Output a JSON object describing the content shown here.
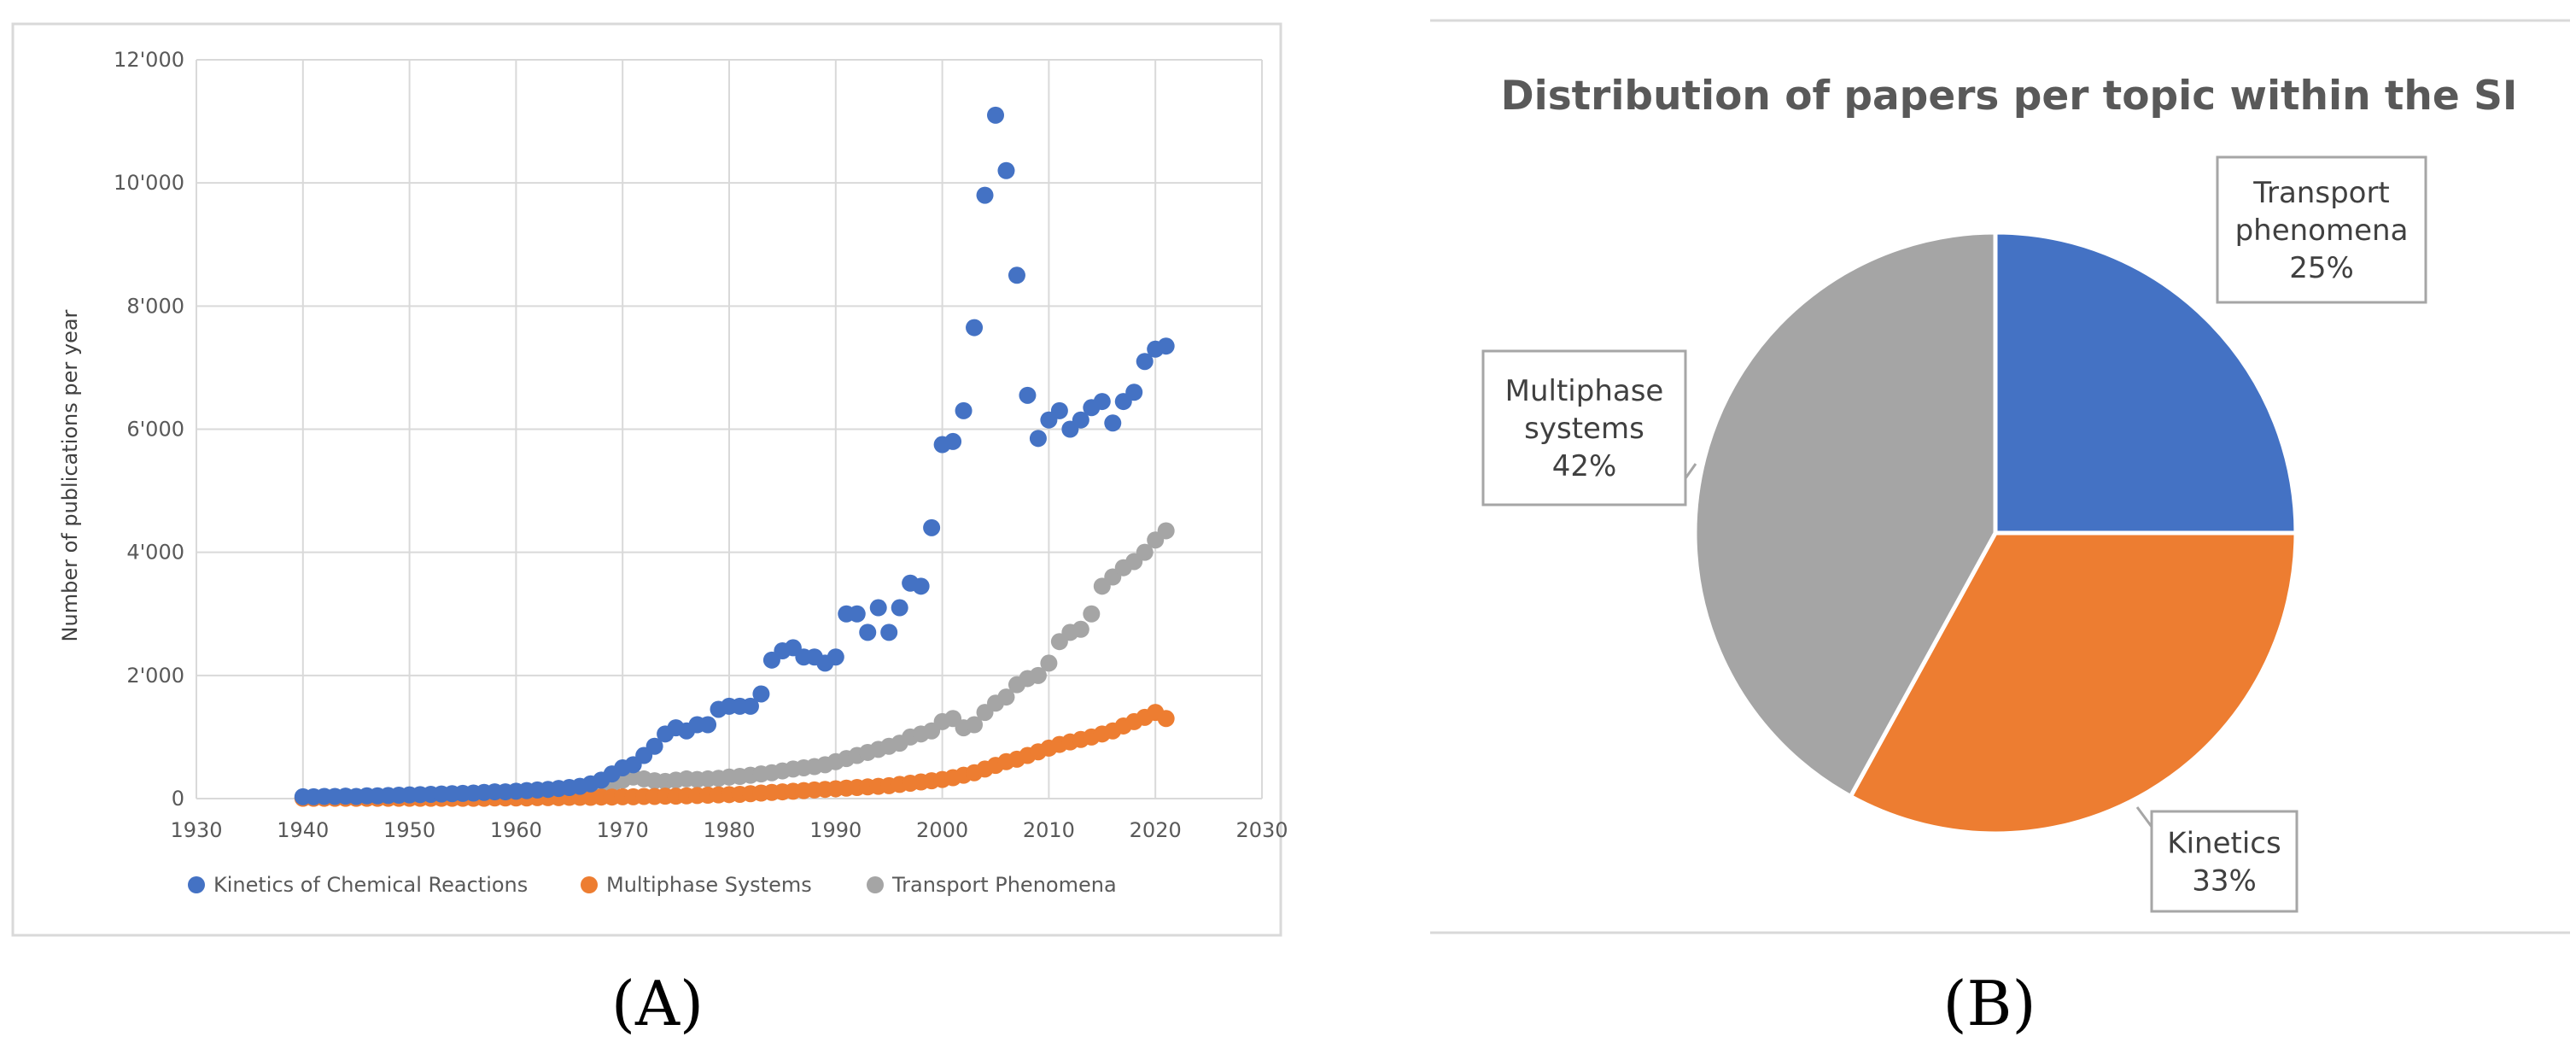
{
  "panel_labels": {
    "a": "(A)",
    "b": "(B)"
  },
  "chart_data": [
    {
      "type": "scatter",
      "title": "",
      "xlabel": "",
      "ylabel": "Number of publications per year",
      "xlim": [
        1930,
        2030
      ],
      "ylim": [
        0,
        12000
      ],
      "x_ticks": [
        1930,
        1940,
        1950,
        1960,
        1970,
        1980,
        1990,
        2000,
        2010,
        2020,
        2030
      ],
      "x_tick_labels": [
        "1930",
        "1940",
        "1950",
        "1960",
        "1970",
        "1980",
        "1990",
        "2000",
        "2010",
        "2020",
        "2030"
      ],
      "y_ticks": [
        0,
        2000,
        4000,
        6000,
        8000,
        10000,
        12000
      ],
      "y_tick_labels": [
        "0",
        "2'000",
        "4'000",
        "6'000",
        "8'000",
        "10'000",
        "12'000"
      ],
      "grid": true,
      "legend_position": "bottom",
      "series": [
        {
          "name": "Kinetics of Chemical Reactions",
          "color": "#4472c4",
          "x": [
            1940,
            1941,
            1942,
            1943,
            1944,
            1945,
            1946,
            1947,
            1948,
            1949,
            1950,
            1951,
            1952,
            1953,
            1954,
            1955,
            1956,
            1957,
            1958,
            1959,
            1960,
            1961,
            1962,
            1963,
            1964,
            1965,
            1966,
            1967,
            1968,
            1969,
            1970,
            1971,
            1972,
            1973,
            1974,
            1975,
            1976,
            1977,
            1978,
            1979,
            1980,
            1981,
            1982,
            1983,
            1984,
            1985,
            1986,
            1987,
            1988,
            1989,
            1990,
            1991,
            1992,
            1993,
            1994,
            1995,
            1996,
            1997,
            1998,
            1999,
            2000,
            2001,
            2002,
            2003,
            2004,
            2005,
            2006,
            2007,
            2008,
            2009,
            2010,
            2011,
            2012,
            2013,
            2014,
            2015,
            2016,
            2017,
            2018,
            2019,
            2020,
            2021
          ],
          "values": [
            30,
            30,
            35,
            35,
            40,
            35,
            45,
            45,
            50,
            55,
            60,
            65,
            70,
            75,
            80,
            85,
            90,
            100,
            110,
            110,
            120,
            130,
            140,
            150,
            165,
            180,
            200,
            240,
            300,
            400,
            500,
            550,
            700,
            850,
            1050,
            1150,
            1100,
            1200,
            1200,
            1450,
            1500,
            1500,
            1500,
            1700,
            2250,
            2400,
            2450,
            2300,
            2300,
            2200,
            2300,
            3000,
            3000,
            2700,
            3100,
            2700,
            3100,
            3500,
            3450,
            4400,
            5750,
            5800,
            6300,
            7650,
            9800,
            11100,
            10200,
            8500,
            6550,
            5850,
            6150,
            6300,
            6000,
            6150,
            6350,
            6450,
            6100,
            6450,
            6600,
            7100,
            7300,
            7350
          ]
        },
        {
          "name": "Multiphase Systems",
          "color": "#ed7d31",
          "x": [
            1940,
            1941,
            1942,
            1943,
            1944,
            1945,
            1946,
            1947,
            1948,
            1949,
            1950,
            1951,
            1952,
            1953,
            1954,
            1955,
            1956,
            1957,
            1958,
            1959,
            1960,
            1961,
            1962,
            1963,
            1964,
            1965,
            1966,
            1967,
            1968,
            1969,
            1970,
            1971,
            1972,
            1973,
            1974,
            1975,
            1976,
            1977,
            1978,
            1979,
            1980,
            1981,
            1982,
            1983,
            1984,
            1985,
            1986,
            1987,
            1988,
            1989,
            1990,
            1991,
            1992,
            1993,
            1994,
            1995,
            1996,
            1997,
            1998,
            1999,
            2000,
            2001,
            2002,
            2003,
            2004,
            2005,
            2006,
            2007,
            2008,
            2009,
            2010,
            2011,
            2012,
            2013,
            2014,
            2015,
            2016,
            2017,
            2018,
            2019,
            2020,
            2021
          ],
          "values": [
            5,
            5,
            5,
            5,
            5,
            5,
            5,
            5,
            5,
            5,
            5,
            5,
            5,
            5,
            5,
            5,
            5,
            5,
            10,
            10,
            10,
            10,
            15,
            15,
            15,
            20,
            20,
            20,
            25,
            25,
            30,
            30,
            35,
            35,
            40,
            40,
            45,
            50,
            55,
            60,
            65,
            70,
            80,
            90,
            100,
            110,
            120,
            130,
            140,
            150,
            160,
            170,
            180,
            190,
            200,
            210,
            230,
            250,
            270,
            290,
            310,
            340,
            380,
            420,
            480,
            540,
            600,
            640,
            700,
            760,
            820,
            880,
            920,
            960,
            1000,
            1050,
            1100,
            1180,
            1250,
            1320,
            1400,
            1300
          ]
        },
        {
          "name": "Transport Phenomena",
          "color": "#a5a5a5",
          "x": [
            1940,
            1941,
            1942,
            1943,
            1944,
            1945,
            1946,
            1947,
            1948,
            1949,
            1950,
            1951,
            1952,
            1953,
            1954,
            1955,
            1956,
            1957,
            1958,
            1959,
            1960,
            1961,
            1962,
            1963,
            1964,
            1965,
            1966,
            1967,
            1968,
            1969,
            1970,
            1971,
            1972,
            1973,
            1974,
            1975,
            1976,
            1977,
            1978,
            1979,
            1980,
            1981,
            1982,
            1983,
            1984,
            1985,
            1986,
            1987,
            1988,
            1989,
            1990,
            1991,
            1992,
            1993,
            1994,
            1995,
            1996,
            1997,
            1998,
            1999,
            2000,
            2001,
            2002,
            2003,
            2004,
            2005,
            2006,
            2007,
            2008,
            2009,
            2010,
            2011,
            2012,
            2013,
            2014,
            2015,
            2016,
            2017,
            2018,
            2019,
            2020,
            2021
          ],
          "values": [
            10,
            10,
            10,
            10,
            15,
            15,
            15,
            20,
            20,
            20,
            25,
            25,
            30,
            30,
            35,
            35,
            40,
            45,
            50,
            55,
            60,
            65,
            70,
            80,
            90,
            100,
            120,
            140,
            170,
            220,
            300,
            350,
            320,
            290,
            280,
            300,
            320,
            310,
            320,
            330,
            350,
            360,
            380,
            400,
            420,
            450,
            480,
            500,
            520,
            550,
            600,
            650,
            700,
            750,
            800,
            850,
            900,
            1000,
            1050,
            1100,
            1250,
            1300,
            1150,
            1200,
            1400,
            1550,
            1650,
            1850,
            1950,
            2000,
            2200,
            2550,
            2700,
            2750,
            3000,
            3450,
            3600,
            3750,
            3850,
            4000,
            4200,
            4350
          ]
        }
      ]
    },
    {
      "type": "pie",
      "title": "Distribution of papers per topic within the SI",
      "legend_position": "none",
      "slices": [
        {
          "label_line1": "Transport",
          "label_line2": "phenomena",
          "percent_label": "25%",
          "value": 25,
          "color": "#4472c4"
        },
        {
          "label_line1": "Kinetics",
          "label_line2": "",
          "percent_label": "33%",
          "value": 33,
          "color": "#ed7d31"
        },
        {
          "label_line1": "Multiphase",
          "label_line2": "systems",
          "percent_label": "42%",
          "value": 42,
          "color": "#a5a5a5"
        }
      ]
    }
  ]
}
